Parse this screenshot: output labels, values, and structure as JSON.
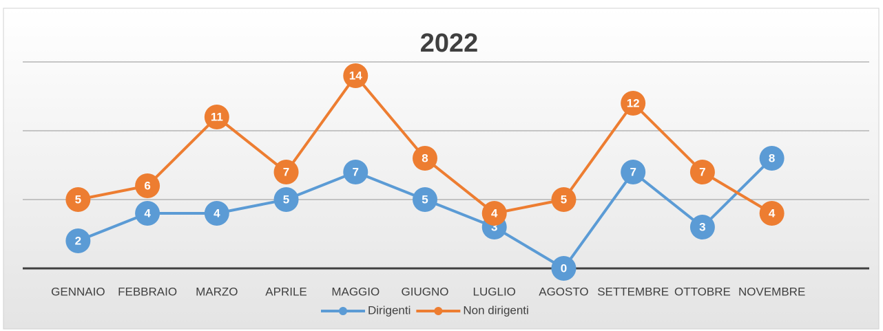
{
  "chart_data": {
    "type": "line",
    "title": "2022",
    "categories": [
      "GENNAIO",
      "FEBBRAIO",
      "MARZO",
      "APRILE",
      "MAGGIO",
      "GIUGNO",
      "LUGLIO",
      "AGOSTO",
      "SETTEMBRE",
      "OTTOBRE",
      "NOVEMBRE"
    ],
    "series": [
      {
        "name": "Dirigenti",
        "color": "#5b9bd5",
        "values": [
          2,
          4,
          4,
          5,
          7,
          5,
          3,
          0,
          7,
          3,
          8
        ]
      },
      {
        "name": "Non dirigenti",
        "color": "#ed7d31",
        "values": [
          5,
          6,
          11,
          7,
          14,
          8,
          4,
          5,
          12,
          7,
          4
        ]
      }
    ],
    "ylim": [
      0,
      15
    ],
    "yticks": [
      0,
      5,
      10,
      15
    ],
    "grid": true,
    "legend": "bottom"
  }
}
